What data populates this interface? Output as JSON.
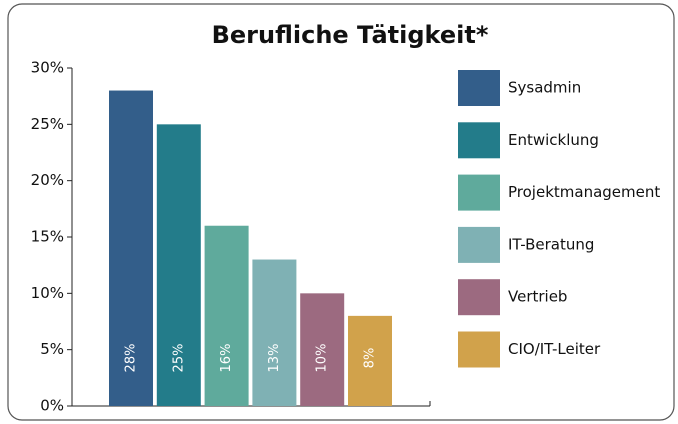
{
  "chart_data": {
    "type": "bar",
    "title": "Berufliche Tätigkeit*",
    "categories": [
      "Sysadmin",
      "Entwicklung",
      "Projektmanagement",
      "IT-Beratung",
      "Vertrieb",
      "CIO/IT-Leiter"
    ],
    "values": [
      28,
      25,
      16,
      13,
      10,
      8
    ],
    "value_labels": [
      "28%",
      "25%",
      "16%",
      "13%",
      "10%",
      "8%"
    ],
    "colors": [
      "#335e8a",
      "#237c8a",
      "#5faa9c",
      "#7fb1b4",
      "#9c6a80",
      "#d1a24b"
    ],
    "ylim": [
      0,
      30
    ],
    "yticks": [
      {
        "value": 0,
        "label": "0%"
      },
      {
        "value": 5,
        "label": "5%"
      },
      {
        "value": 10,
        "label": "10%"
      },
      {
        "value": 15,
        "label": "15%"
      },
      {
        "value": 20,
        "label": "20%"
      },
      {
        "value": 25,
        "label": "25%"
      },
      {
        "value": 30,
        "label": "30%"
      }
    ],
    "grid": false,
    "legend": "right"
  }
}
